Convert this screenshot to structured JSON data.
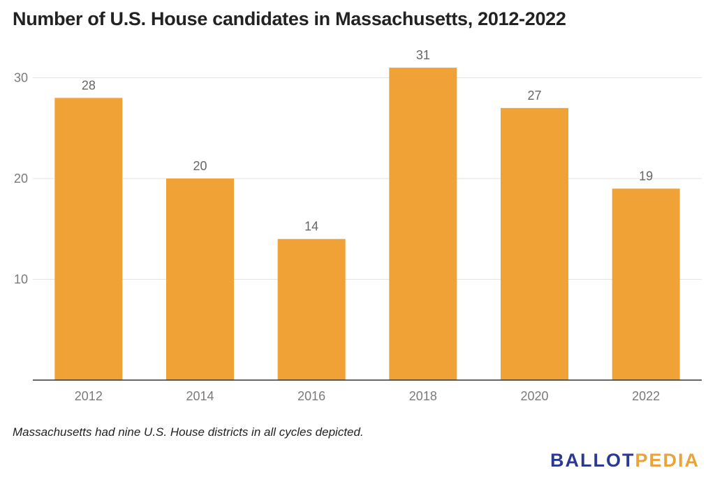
{
  "chart_data": {
    "type": "bar",
    "title": "Number of U.S. House candidates in Massachusetts, 2012-2022",
    "categories": [
      "2012",
      "2014",
      "2016",
      "2018",
      "2020",
      "2022"
    ],
    "values": [
      28,
      20,
      14,
      31,
      27,
      19
    ],
    "yticks": [
      10,
      20,
      30
    ],
    "ylim": [
      0,
      32
    ],
    "grid": true,
    "bar_color": "#f0a236",
    "xlabel": "",
    "ylabel": ""
  },
  "note": "Massachusetts had nine U.S. House districts in all cycles depicted.",
  "logo": {
    "part1": "BALLOT",
    "part2": "PEDIA"
  }
}
